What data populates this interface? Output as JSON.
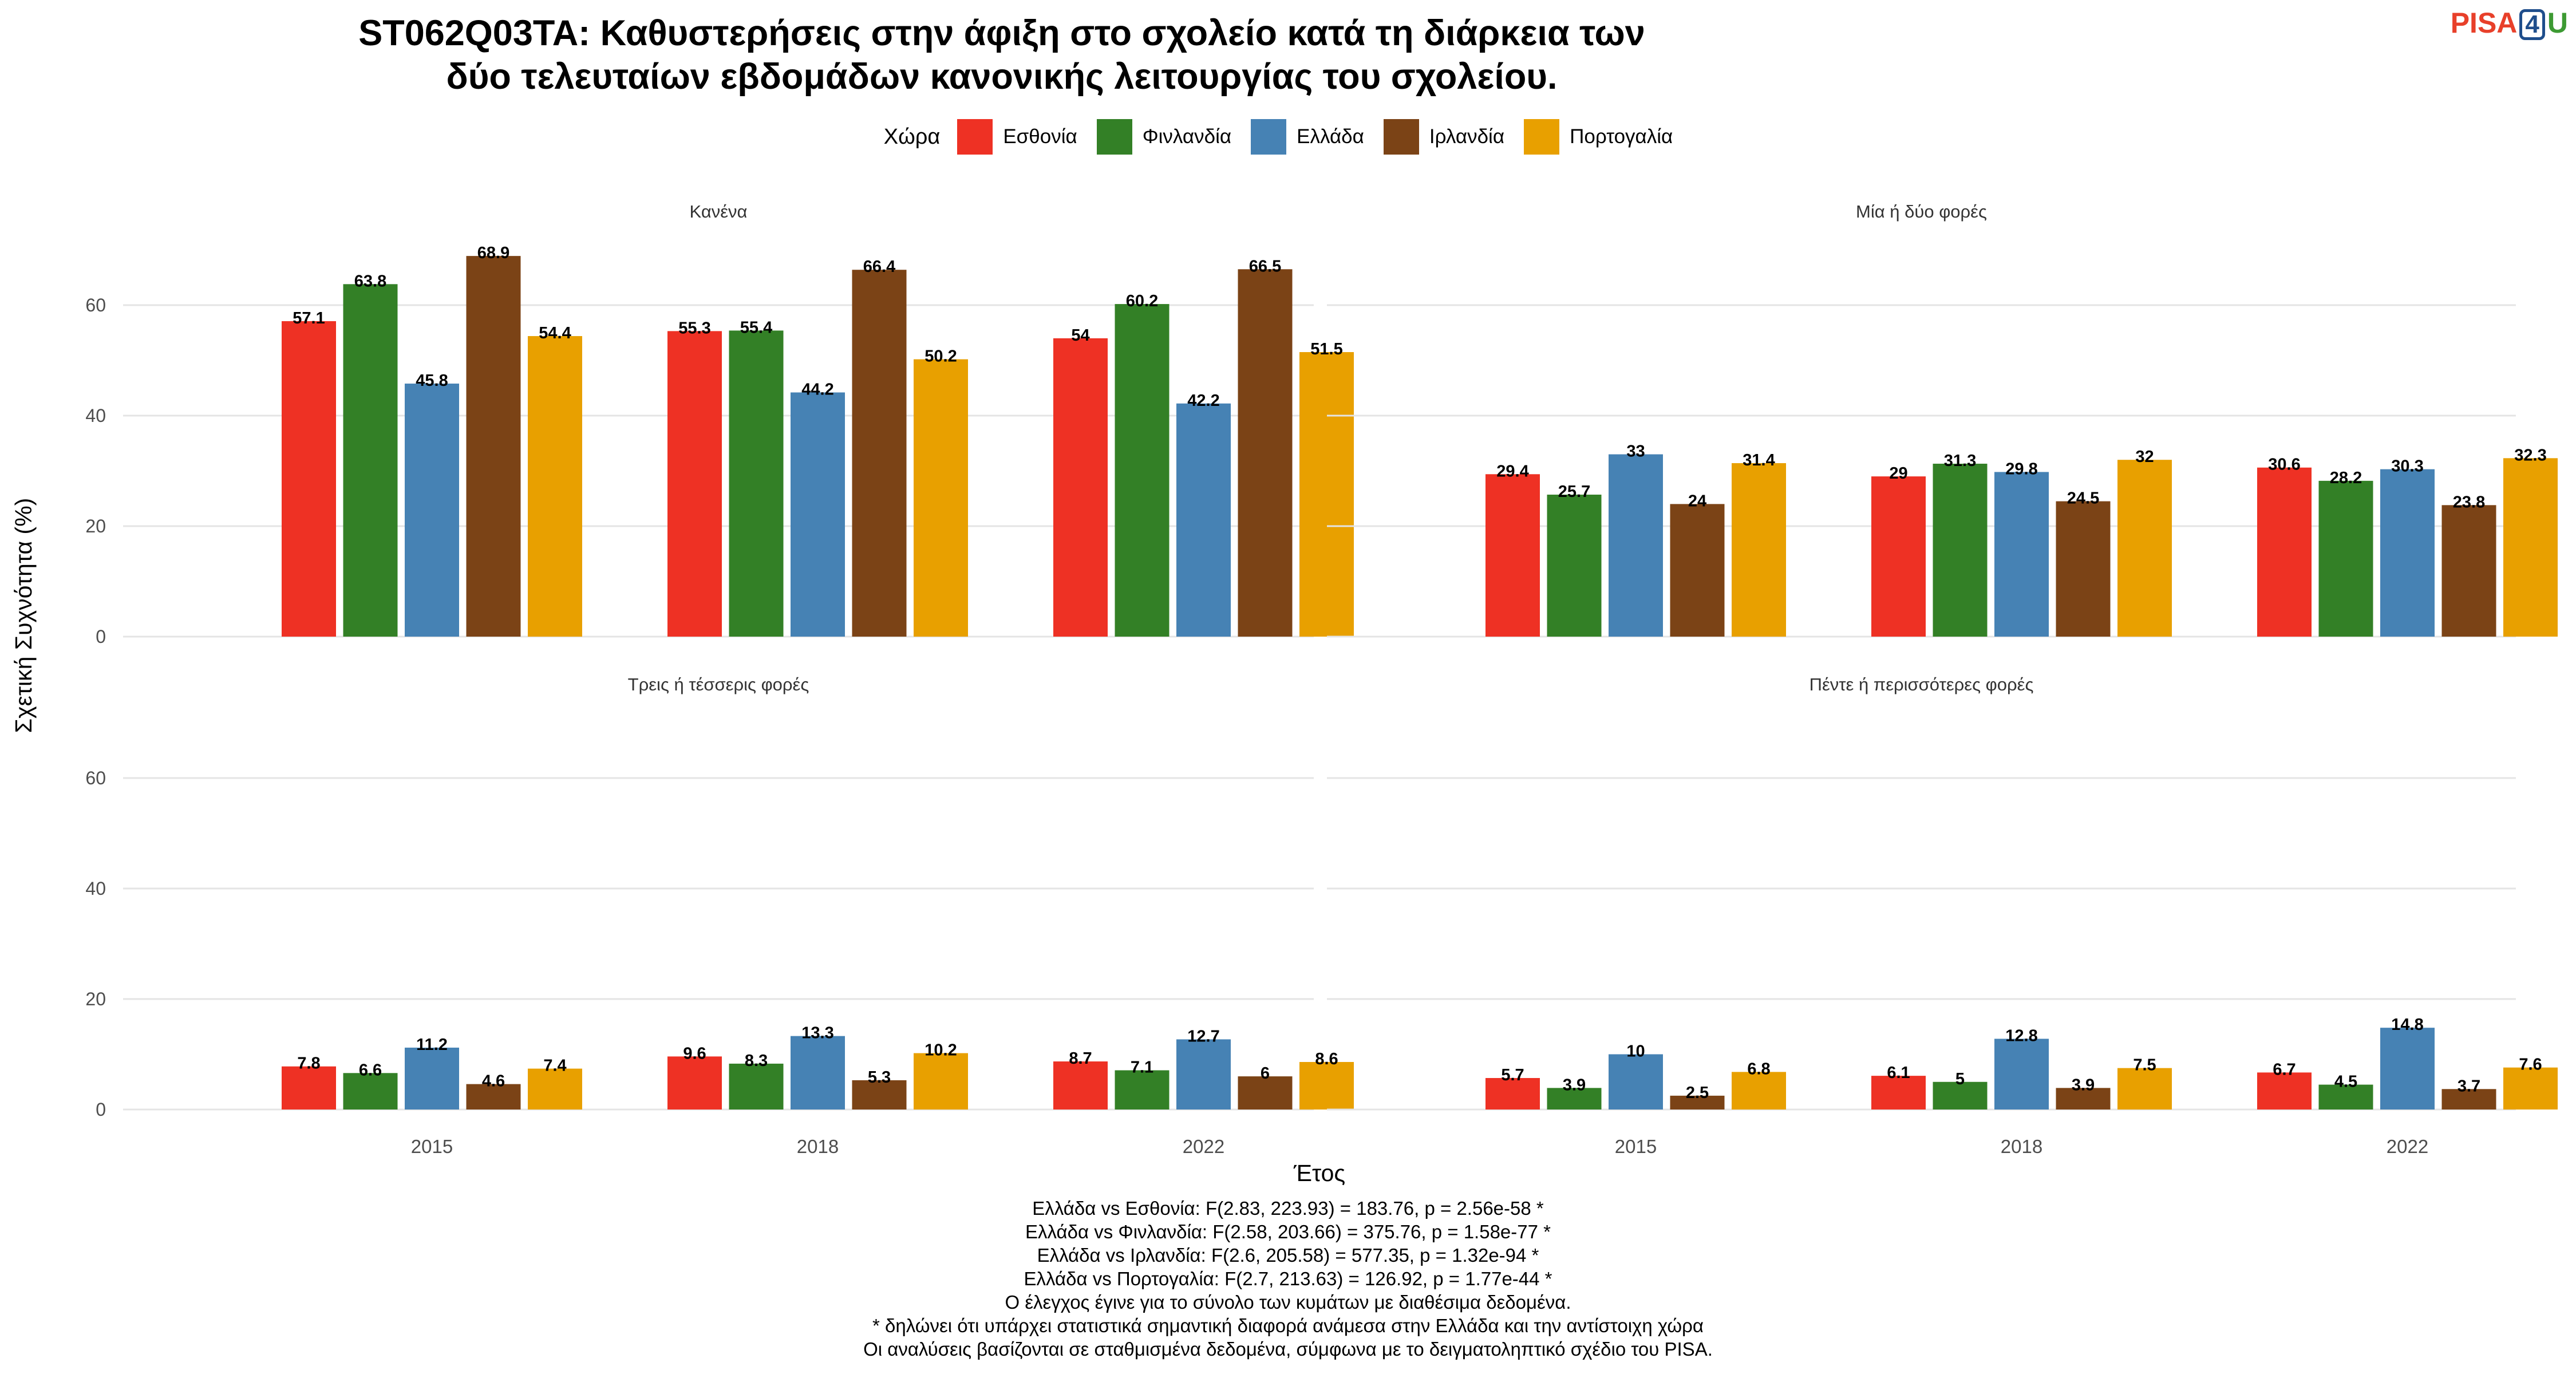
{
  "title_lines": [
    "ST062Q03TA: Καθυστερήσεις στην άφιξη στο σχολείο κατά τη διάρκεια των",
    "δύο τελευταίων εβδομάδων κανονικής λειτουργίας του σχολείου."
  ],
  "logo": {
    "pisa": "PISA",
    "four": "4",
    "u": "U"
  },
  "legend": {
    "title": "Χώρα",
    "items": [
      {
        "name": "Εσθονία",
        "color": "#ee3124"
      },
      {
        "name": "Φινλανδία",
        "color": "#338026"
      },
      {
        "name": "Ελλάδα",
        "color": "#4682b4"
      },
      {
        "name": "Ιρλανδία",
        "color": "#7b4316"
      },
      {
        "name": "Πορτογαλία",
        "color": "#e8a000"
      }
    ]
  },
  "chart_data": {
    "type": "bar",
    "ylabel": "Σχετική Συχνότητα (%)",
    "xlabel": "Έτος",
    "ylim": [
      0,
      70
    ],
    "yticks": [
      0,
      20,
      40,
      60
    ],
    "grid": true,
    "legend_position": "top",
    "categories": [
      "2015",
      "2018",
      "2022"
    ],
    "series_names": [
      "Εσθονία",
      "Φινλανδία",
      "Ελλάδα",
      "Ιρλανδία",
      "Πορτογαλία"
    ],
    "panels": [
      {
        "title": "Κανένα",
        "series": [
          {
            "values": [
              57.1,
              55.3,
              54
            ]
          },
          {
            "values": [
              63.8,
              55.4,
              60.2
            ]
          },
          {
            "values": [
              45.8,
              44.2,
              42.2
            ]
          },
          {
            "values": [
              68.9,
              66.4,
              66.5
            ]
          },
          {
            "values": [
              54.4,
              50.2,
              51.5
            ]
          }
        ]
      },
      {
        "title": "Μία ή δύο φορές",
        "series": [
          {
            "values": [
              29.4,
              29,
              30.6
            ]
          },
          {
            "values": [
              25.7,
              31.3,
              28.2
            ]
          },
          {
            "values": [
              33,
              29.8,
              30.3
            ]
          },
          {
            "values": [
              24,
              24.5,
              23.8
            ]
          },
          {
            "values": [
              31.4,
              32,
              32.3
            ]
          }
        ]
      },
      {
        "title": "Τρεις ή τέσσερις φορές",
        "series": [
          {
            "values": [
              7.8,
              9.6,
              8.7
            ]
          },
          {
            "values": [
              6.6,
              8.3,
              7.1
            ]
          },
          {
            "values": [
              11.2,
              13.3,
              12.7
            ]
          },
          {
            "values": [
              4.6,
              5.3,
              6
            ]
          },
          {
            "values": [
              7.4,
              10.2,
              8.6
            ]
          }
        ]
      },
      {
        "title": "Πέντε ή περισσότερες φορές",
        "series": [
          {
            "values": [
              5.7,
              6.1,
              6.7
            ]
          },
          {
            "values": [
              3.9,
              5,
              4.5
            ]
          },
          {
            "values": [
              10,
              12.8,
              14.8
            ]
          },
          {
            "values": [
              2.5,
              3.9,
              3.7
            ]
          },
          {
            "values": [
              6.8,
              7.5,
              7.6
            ]
          }
        ]
      }
    ]
  },
  "notes": [
    "Ελλάδα vs Εσθονία: F(2.83, 223.93) = 183.76, p = 2.56e-58 *",
    "Ελλάδα vs Φινλανδία: F(2.58, 203.66) = 375.76, p = 1.58e-77 *",
    "Ελλάδα vs Ιρλανδία: F(2.6, 205.58) = 577.35, p = 1.32e-94 *",
    "Ελλάδα vs Πορτογαλία: F(2.7, 213.63) = 126.92, p = 1.77e-44 *",
    "Ο έλεγχος έγινε για το σύνολο των κυμάτων με διαθέσιμα δεδομένα.",
    "* δηλώνει ότι υπάρχει στατιστικά σημαντική διαφορά ανάμεσα στην Ελλάδα και την αντίστοιχη χώρα",
    "Οι αναλύσεις βασίζονται σε σταθμισμένα δεδομένα, σύμφωνα με το δειγματοληπτικό σχέδιο του PISA."
  ]
}
